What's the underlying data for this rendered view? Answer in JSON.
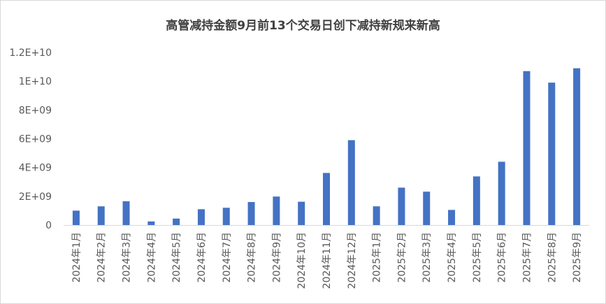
{
  "chart_data": {
    "type": "bar",
    "title": "高管减持金额9月前13个交易日创下减持新规来新高",
    "xlabel": "",
    "ylabel": "",
    "ylim": [
      0,
      12000000000
    ],
    "yticks": [
      "0",
      "2E+09",
      "4E+09",
      "6E+09",
      "8E+09",
      "1E+10",
      "1.2E+10"
    ],
    "yticks_values": [
      0,
      2000000000,
      4000000000,
      6000000000,
      8000000000,
      10000000000,
      12000000000
    ],
    "grid": false,
    "legend": "none",
    "color": "#4472c4",
    "categories": [
      "2024年1月",
      "2024年2月",
      "2024年3月",
      "2024年4月",
      "2024年5月",
      "2024年6月",
      "2024年7月",
      "2024年8月",
      "2024年9月",
      "2024年10月",
      "2024年11月",
      "2024年12月",
      "2025年1月",
      "2025年2月",
      "2025年3月",
      "2025年4月",
      "2025年5月",
      "2025年6月",
      "2025年7月",
      "2025年8月",
      "2025年9月"
    ],
    "values": [
      1000000000,
      1300000000,
      1650000000,
      250000000,
      450000000,
      1100000000,
      1200000000,
      1600000000,
      1980000000,
      1620000000,
      3620000000,
      5900000000,
      1300000000,
      2600000000,
      2320000000,
      1050000000,
      3380000000,
      4400000000,
      10700000000,
      9900000000,
      10900000000
    ]
  }
}
